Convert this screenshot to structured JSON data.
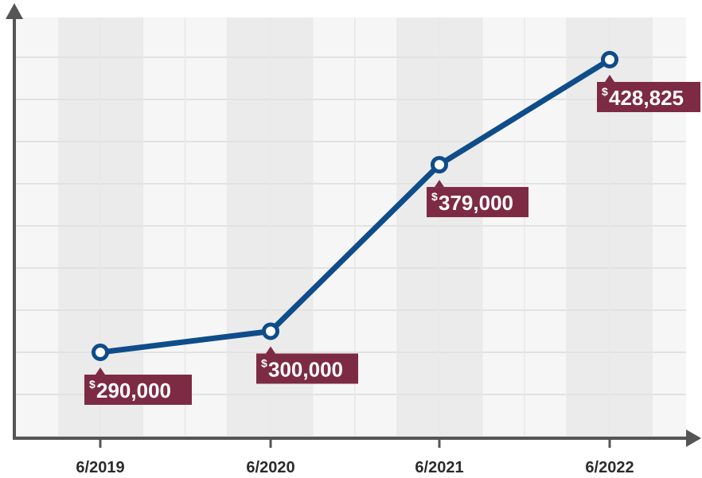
{
  "chart_data": {
    "type": "line",
    "x": [
      "6/2019",
      "6/2020",
      "6/2021",
      "6/2022"
    ],
    "series": [
      {
        "values": [
          290000,
          300000,
          379000,
          428825
        ]
      }
    ],
    "data_labels": [
      {
        "currency": "$",
        "amount": "290,000"
      },
      {
        "currency": "$",
        "amount": "300,000"
      },
      {
        "currency": "$",
        "amount": "379,000"
      },
      {
        "currency": "$",
        "amount": "428,825"
      }
    ],
    "title": "",
    "xlabel": "",
    "ylabel": "",
    "grid": true,
    "colors": {
      "line": "#0f4c8a",
      "marker_fill": "#ffffff",
      "label_bg": "#7d2a45",
      "label_text": "#ffffff",
      "axis": "#555555",
      "grid_band_dark": "#ebebeb",
      "grid_band_light": "#f6f6f6"
    }
  }
}
